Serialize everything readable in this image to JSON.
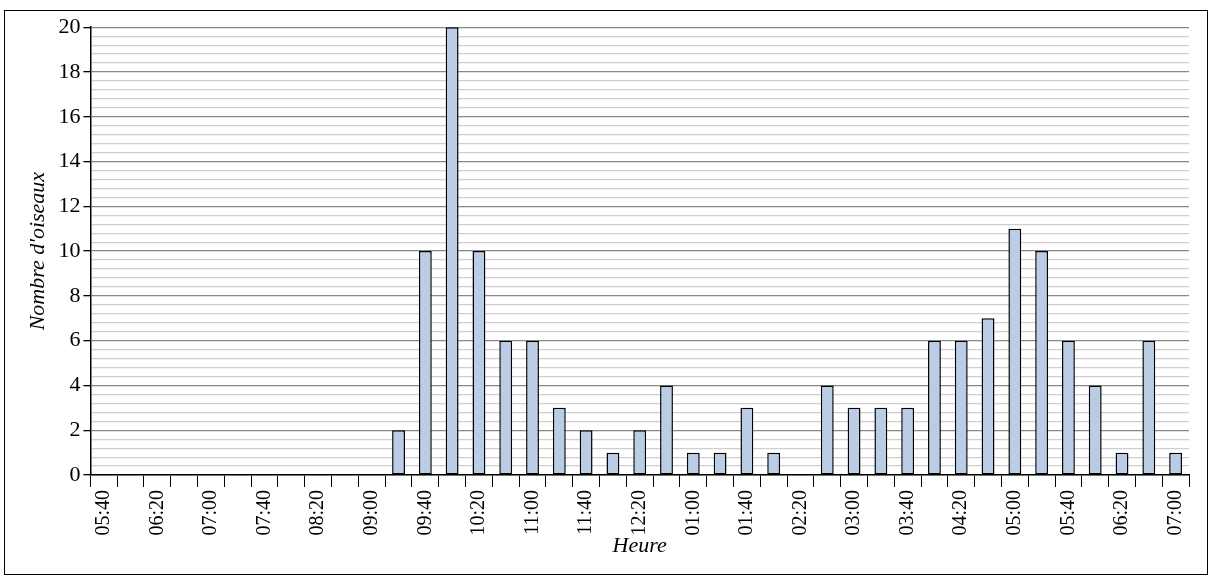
{
  "chart_data": {
    "type": "bar",
    "xlabel": "Heure",
    "ylabel": "Nombre d'oiseaux",
    "categories": [
      "05:40",
      null,
      "06:20",
      null,
      "07:00",
      null,
      "07:40",
      null,
      "08:20",
      null,
      "09:00",
      null,
      "09:40",
      null,
      "10:20",
      null,
      "11:00",
      null,
      "11:40",
      null,
      "12:20",
      null,
      "01:00",
      null,
      "01:40",
      null,
      "02:20",
      null,
      "03:00",
      null,
      "03:40",
      null,
      "04:20",
      null,
      "05:00",
      null,
      "05:40",
      null,
      "06:20",
      null,
      "07:00"
    ],
    "values": [
      0,
      0,
      0,
      0,
      0,
      0,
      0,
      0,
      0,
      0,
      0,
      2,
      10,
      20,
      10,
      6,
      6,
      3,
      2,
      1,
      2,
      4,
      1,
      1,
      3,
      1,
      0,
      4,
      3,
      3,
      3,
      6,
      6,
      7,
      11,
      10,
      6,
      4,
      1,
      6,
      1
    ],
    "color": "#b9cde5",
    "ylim": [
      0,
      20
    ],
    "yticks": [
      0,
      {
        "value": 0.4,
        "label": null
      },
      {
        "value": 0.8,
        "label": null
      },
      {
        "value": 1.2,
        "label": null
      },
      {
        "value": 1.6,
        "label": null
      },
      2,
      {
        "value": 2.4,
        "label": null
      },
      {
        "value": 2.8,
        "label": null
      },
      {
        "value": 3.2,
        "label": null
      },
      {
        "value": 3.6,
        "label": null
      },
      4,
      {
        "value": 4.4,
        "label": null
      },
      {
        "value": 4.8,
        "label": null
      },
      {
        "value": 5.2,
        "label": null
      },
      {
        "value": 5.6,
        "label": null
      },
      6,
      {
        "value": 6.4,
        "label": null
      },
      {
        "value": 6.8,
        "label": null
      },
      {
        "value": 7.2,
        "label": null
      },
      {
        "value": 7.6,
        "label": null
      },
      8,
      {
        "value": 8.4,
        "label": null
      },
      {
        "value": 8.8,
        "label": null
      },
      {
        "value": 9.2,
        "label": null
      },
      {
        "value": 9.6,
        "label": null
      },
      10,
      {
        "value": 10.4,
        "label": null
      },
      {
        "value": 10.8,
        "label": null
      },
      {
        "value": 11.2,
        "label": null
      },
      {
        "value": 11.6,
        "label": null
      },
      12,
      {
        "value": 12.4,
        "label": null
      },
      {
        "value": 12.8,
        "label": null
      },
      {
        "value": 13.2,
        "label": null
      },
      {
        "value": 13.6,
        "label": null
      },
      14,
      {
        "value": 14.4,
        "label": null
      },
      {
        "value": 14.8,
        "label": null
      },
      {
        "value": 15.2,
        "label": null
      },
      {
        "value": 15.6,
        "label": null
      },
      16,
      {
        "value": 16.4,
        "label": null
      },
      {
        "value": 16.8,
        "label": null
      },
      {
        "value": 17.2,
        "label": null
      },
      {
        "value": 17.6,
        "label": null
      },
      18,
      {
        "value": 18.4,
        "label": null
      },
      {
        "value": 18.8,
        "label": null
      },
      {
        "value": 19.2,
        "label": null
      },
      {
        "value": 19.6,
        "label": null
      },
      20
    ],
    "grid": "y"
  }
}
